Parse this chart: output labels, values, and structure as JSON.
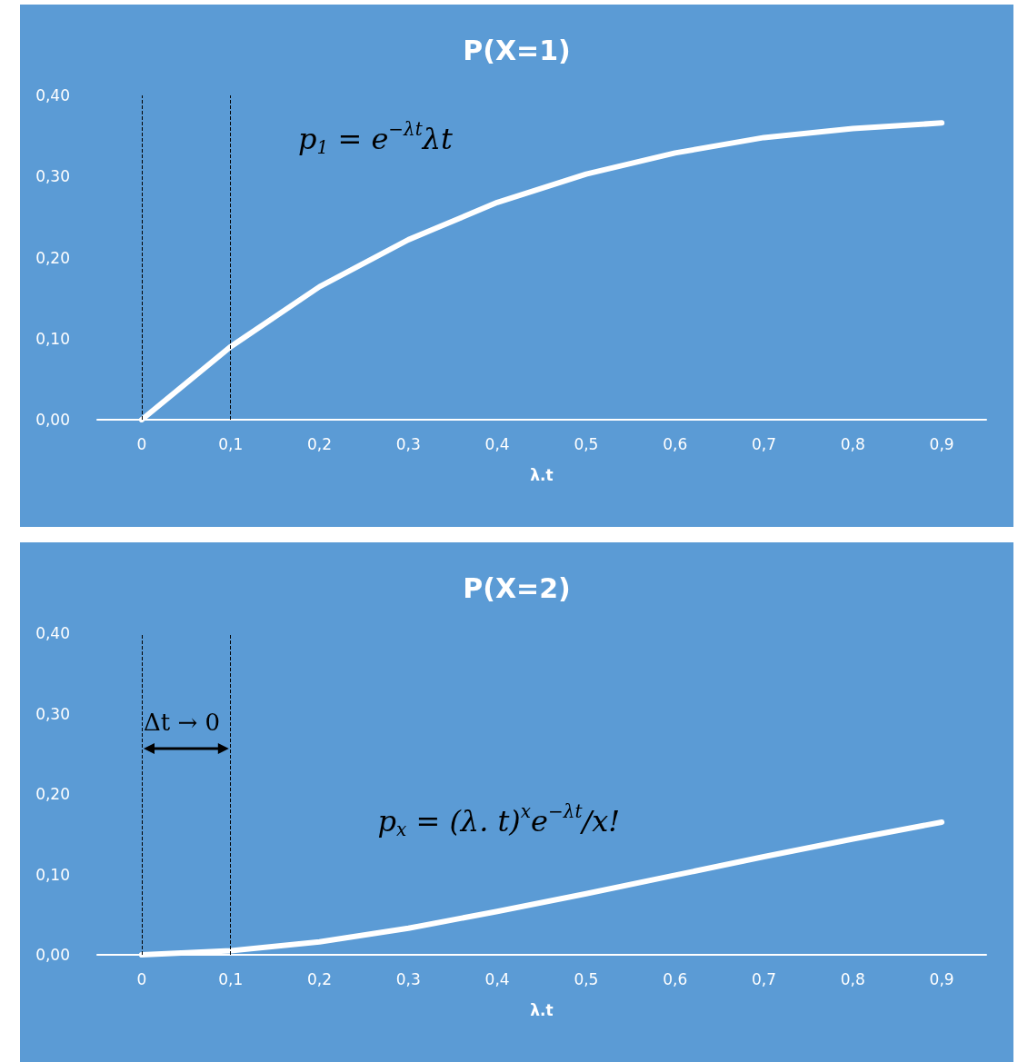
{
  "chart_data": [
    {
      "type": "line",
      "title": "P(X=1)",
      "xlabel": "λ.t",
      "categories": [
        "0",
        "0,1",
        "0,2",
        "0,3",
        "0,4",
        "0,5",
        "0,6",
        "0,7",
        "0,8",
        "0,9"
      ],
      "series": [
        {
          "color": "#ffffff",
          "values": [
            0,
            0.09,
            0.164,
            0.222,
            0.268,
            0.303,
            0.329,
            0.348,
            0.359,
            0.366
          ]
        }
      ],
      "ylim": [
        0,
        0.4
      ],
      "yticks": [
        {
          "value": 0,
          "label": "0,00"
        },
        {
          "value": 0.1,
          "label": "0,10"
        },
        {
          "value": 0.2,
          "label": "0,20"
        },
        {
          "value": 0.3,
          "label": "0,30"
        },
        {
          "value": 0.4,
          "label": "0,40"
        }
      ],
      "grid": false,
      "marker": "none",
      "line_style": "solid",
      "ref_lines": [
        {
          "axis": "x",
          "value": "0",
          "color": "#000000",
          "line_style": "dashed"
        },
        {
          "axis": "x",
          "value": "0,1",
          "color": "#000000",
          "line_style": "dashed"
        }
      ],
      "annotations": [
        "p$_{1}$ = e$^{−λt}$λt"
      ]
    },
    {
      "type": "line",
      "title": "P(X=2)",
      "xlabel": "λ.t",
      "categories": [
        "0",
        "0,1",
        "0,2",
        "0,3",
        "0,4",
        "0,5",
        "0,6",
        "0,7",
        "0,8",
        "0,9"
      ],
      "series": [
        {
          "color": "#ffffff",
          "values": [
            0,
            0.005,
            0.016,
            0.033,
            0.054,
            0.076,
            0.099,
            0.122,
            0.144,
            0.165
          ]
        }
      ],
      "ylim": [
        0,
        0.4
      ],
      "yticks": [
        {
          "value": 0,
          "label": "0,00"
        },
        {
          "value": 0.1,
          "label": "0,10"
        },
        {
          "value": 0.2,
          "label": "0,20"
        },
        {
          "value": 0.3,
          "label": "0,30"
        },
        {
          "value": 0.4,
          "label": "0,40"
        }
      ],
      "grid": false,
      "marker": "none",
      "line_style": "solid",
      "ref_lines": [
        {
          "axis": "x",
          "value": "0",
          "color": "#000000",
          "line_style": "dashed"
        },
        {
          "axis": "x",
          "value": "0,1",
          "color": "#000000",
          "line_style": "dashed"
        }
      ],
      "annotations": [
        {
          "text": "Δt → 0",
          "x": "0",
          "y": 0.3
        },
        "p$_{x}$ = (λ. t)$^{x}$e$^{−λt}$/x!"
      ]
    }
  ]
}
